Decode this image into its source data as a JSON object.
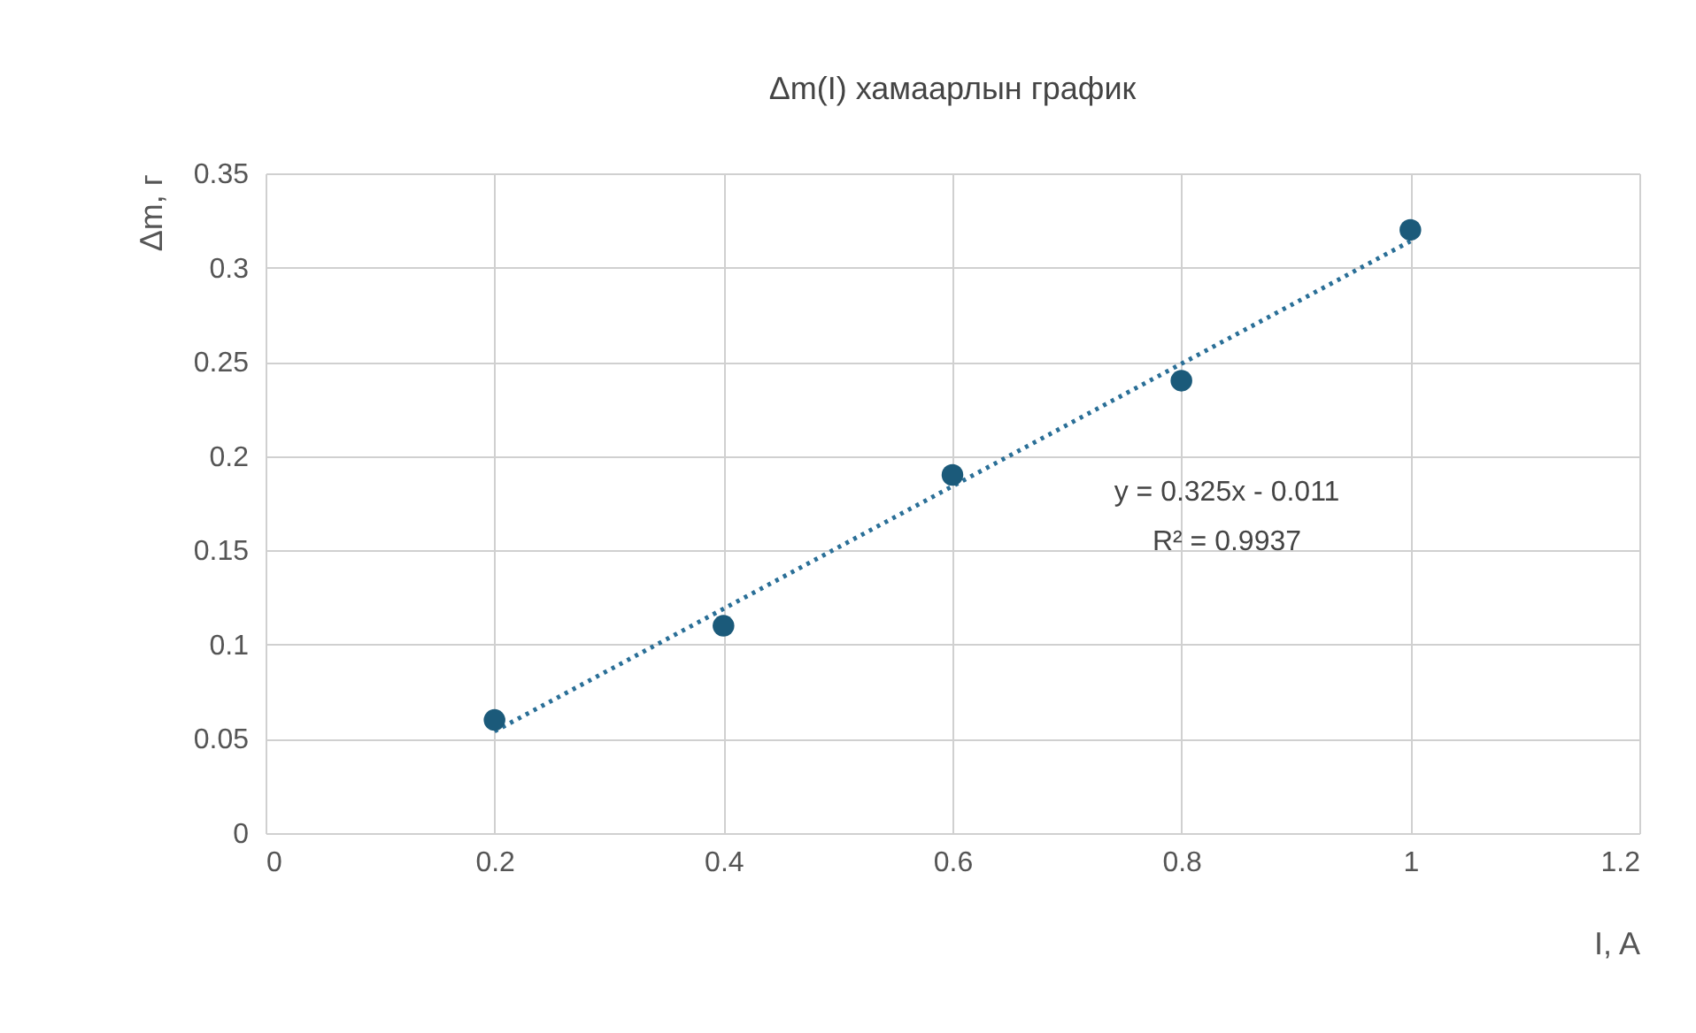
{
  "chart_data": {
    "type": "scatter",
    "title": "Δm(I) хамаарлын график",
    "xlabel": "I, A",
    "ylabel": "Δm, г",
    "x": [
      0.2,
      0.4,
      0.6,
      0.8,
      1.0
    ],
    "series": [
      {
        "color": "#1b5a7a",
        "values": [
          0.06,
          0.11,
          0.19,
          0.24,
          0.32
        ]
      },
      {
        "type": "line",
        "color": "#2a6f97",
        "line_style": "dotted",
        "marker": "none",
        "x": [
          0.2,
          1.0
        ],
        "values": [
          0.054,
          0.314
        ]
      }
    ],
    "xlim": [
      0,
      1.2
    ],
    "xticks": [
      0,
      0.2,
      0.4,
      0.6,
      0.8,
      1,
      1.2
    ],
    "ylim": [
      0,
      0.35
    ],
    "yticks": [
      0,
      0.05,
      0.1,
      0.15,
      0.2,
      0.25,
      0.3,
      0.35
    ],
    "grid": true,
    "marker": "circle",
    "annotations": [
      "y = 0.325x - 0.011",
      "R² = 0.9937"
    ]
  }
}
